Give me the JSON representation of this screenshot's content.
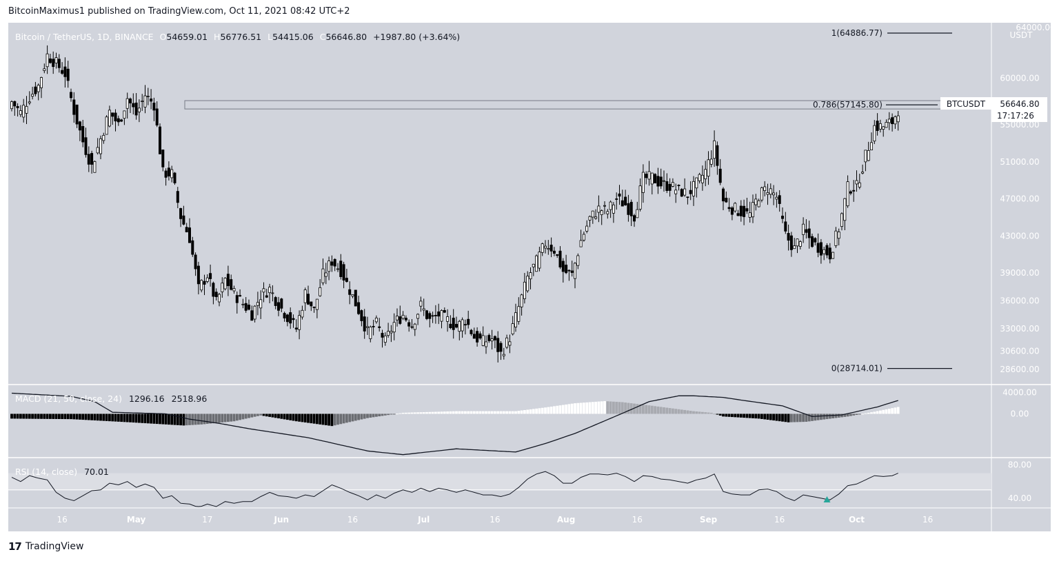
{
  "header": {
    "published": "BitcoinMaximus1 published on TradingView.com, Oct 11, 2021 08:42 UTC+2"
  },
  "legend": {
    "symbol": "Bitcoin / TetherUS, 1D, BINANCE",
    "o_key": "O",
    "o_val": "54659.01",
    "h_key": "H",
    "h_val": "56776.51",
    "l_key": "L",
    "l_val": "54415.06",
    "c_key": "C",
    "c_val": "56646.80",
    "change": "+1987.80 (+3.64%)"
  },
  "price_badge": {
    "symbol": "BTCUSDT",
    "price": "56646.80",
    "countdown": "17:17:26"
  },
  "currency_label": "USDT",
  "top_tick_partial": "64000.00",
  "logo": {
    "mark": "17",
    "text": "TradingView"
  },
  "colors": {
    "bg": "#d1d4dc",
    "up": "#ffffff",
    "down": "#000000",
    "rsi_signal": "#26a69a"
  },
  "chart_data": {
    "type": "candlestick",
    "price_axis": {
      "ticks": [
        "60000.00",
        "55000.00",
        "51000.00",
        "47000.00",
        "43000.00",
        "39000.00",
        "36000.00",
        "33000.00",
        "30600.00",
        "28600.00"
      ],
      "range": [
        27200,
        66000
      ]
    },
    "x_ticks": [
      "16",
      "May",
      "17",
      "Jun",
      "16",
      "Jul",
      "16",
      "Aug",
      "16",
      "Sep",
      "16",
      "Oct",
      "16"
    ],
    "fib_levels": [
      {
        "label": "1(64886.77)",
        "value": 64886.77
      },
      {
        "label": "0.786(57145.80)",
        "value": 57145.8
      },
      {
        "label": "0(28714.01)",
        "value": 28714.01
      }
    ],
    "resistance_zone": [
      56700,
      57600
    ],
    "close_path": [
      [
        0,
        57500
      ],
      [
        3,
        56300
      ],
      [
        6,
        58000
      ],
      [
        9,
        59200
      ],
      [
        12,
        62500
      ],
      [
        15,
        61600
      ],
      [
        18,
        60500
      ],
      [
        21,
        56500
      ],
      [
        24,
        53200
      ],
      [
        27,
        50500
      ],
      [
        30,
        53500
      ],
      [
        33,
        56400
      ],
      [
        36,
        55000
      ],
      [
        39,
        57900
      ],
      [
        42,
        56100
      ],
      [
        45,
        58200
      ],
      [
        48,
        57200
      ],
      [
        51,
        49800
      ],
      [
        54,
        49700
      ],
      [
        57,
        45100
      ],
      [
        60,
        42800
      ],
      [
        63,
        37300
      ],
      [
        66,
        38800
      ],
      [
        69,
        35800
      ],
      [
        72,
        38300
      ],
      [
        75,
        36800
      ],
      [
        78,
        35700
      ],
      [
        81,
        34600
      ],
      [
        84,
        36600
      ],
      [
        87,
        37300
      ],
      [
        90,
        35600
      ],
      [
        93,
        34300
      ],
      [
        96,
        33000
      ],
      [
        99,
        36800
      ],
      [
        102,
        35000
      ],
      [
        105,
        38800
      ],
      [
        108,
        40300
      ],
      [
        111,
        39300
      ],
      [
        114,
        37200
      ],
      [
        117,
        35000
      ],
      [
        120,
        32600
      ],
      [
        123,
        33500
      ],
      [
        126,
        31600
      ],
      [
        129,
        33600
      ],
      [
        132,
        34500
      ],
      [
        135,
        33400
      ],
      [
        138,
        35500
      ],
      [
        141,
        33900
      ],
      [
        144,
        34500
      ],
      [
        147,
        33900
      ],
      [
        150,
        33200
      ],
      [
        153,
        34000
      ],
      [
        156,
        32100
      ],
      [
        159,
        31600
      ],
      [
        162,
        31900
      ],
      [
        165,
        30300
      ],
      [
        168,
        32100
      ],
      [
        171,
        35300
      ],
      [
        174,
        38500
      ],
      [
        177,
        40200
      ],
      [
        180,
        42200
      ],
      [
        183,
        41500
      ],
      [
        186,
        39200
      ],
      [
        189,
        38800
      ],
      [
        192,
        42500
      ],
      [
        195,
        44900
      ],
      [
        198,
        45900
      ],
      [
        201,
        45700
      ],
      [
        204,
        47000
      ],
      [
        207,
        46400
      ],
      [
        210,
        45200
      ],
      [
        213,
        49200
      ],
      [
        216,
        49300
      ],
      [
        219,
        48600
      ],
      [
        222,
        48400
      ],
      [
        225,
        47900
      ],
      [
        228,
        47500
      ],
      [
        231,
        48600
      ],
      [
        234,
        50000
      ],
      [
        237,
        52700
      ],
      [
        240,
        46800
      ],
      [
        243,
        46000
      ],
      [
        246,
        45600
      ],
      [
        249,
        45300
      ],
      [
        252,
        47400
      ],
      [
        255,
        48200
      ],
      [
        258,
        47200
      ],
      [
        261,
        43100
      ],
      [
        264,
        41600
      ],
      [
        267,
        43600
      ],
      [
        270,
        42300
      ],
      [
        273,
        41600
      ],
      [
        276,
        41000
      ],
      [
        279,
        43800
      ],
      [
        282,
        48200
      ],
      [
        285,
        48300
      ],
      [
        288,
        51600
      ],
      [
        291,
        54800
      ],
      [
        294,
        54800
      ],
      [
        297,
        55300
      ],
      [
        299,
        56646.8
      ]
    ],
    "macd": {
      "label": "MACD (21, 50, close, 24)",
      "value1": "1296.16",
      "value2": "2518.96",
      "axis_ticks": [
        "4000.00",
        "0.00"
      ],
      "range": [
        -8000,
        5000
      ],
      "histogram_path": [
        [
          0,
          -900
        ],
        [
          20,
          -1000
        ],
        [
          40,
          -1600
        ],
        [
          58,
          -2200
        ],
        [
          64,
          -2000
        ],
        [
          75,
          -1400
        ],
        [
          84,
          -300
        ],
        [
          96,
          -1400
        ],
        [
          108,
          -2300
        ],
        [
          120,
          -800
        ],
        [
          132,
          200
        ],
        [
          150,
          500
        ],
        [
          170,
          500
        ],
        [
          180,
          1200
        ],
        [
          190,
          2000
        ],
        [
          200,
          2400
        ],
        [
          206,
          2200
        ],
        [
          215,
          1600
        ],
        [
          230,
          500
        ],
        [
          236,
          200
        ],
        [
          240,
          -500
        ],
        [
          252,
          -900
        ],
        [
          262,
          -1600
        ],
        [
          268,
          -1500
        ],
        [
          272,
          -1200
        ],
        [
          282,
          -500
        ],
        [
          291,
          400
        ],
        [
          299,
          1300
        ]
      ],
      "line_path": [
        [
          0,
          3900
        ],
        [
          20,
          3300
        ],
        [
          28,
          2300
        ],
        [
          34,
          300
        ],
        [
          40,
          200
        ],
        [
          52,
          0
        ],
        [
          60,
          -1000
        ],
        [
          70,
          -1800
        ],
        [
          80,
          -2800
        ],
        [
          100,
          -4500
        ],
        [
          120,
          -7000
        ],
        [
          132,
          -7700
        ],
        [
          150,
          -6600
        ],
        [
          170,
          -7200
        ],
        [
          180,
          -5600
        ],
        [
          190,
          -3700
        ],
        [
          198,
          -1800
        ],
        [
          206,
          100
        ],
        [
          215,
          2300
        ],
        [
          225,
          3400
        ],
        [
          230,
          3400
        ],
        [
          240,
          3100
        ],
        [
          246,
          2600
        ],
        [
          260,
          1500
        ],
        [
          270,
          -500
        ],
        [
          280,
          -200
        ],
        [
          292,
          1300
        ],
        [
          299,
          2518.96
        ]
      ]
    },
    "rsi": {
      "label": "RSI (14, close)",
      "value": "70.01",
      "axis_ticks": [
        "80.00",
        "40.00"
      ],
      "range": [
        30,
        87
      ],
      "bands": [
        50,
        70
      ],
      "path": [
        [
          0,
          65
        ],
        [
          3,
          60
        ],
        [
          6,
          67
        ],
        [
          9,
          64
        ],
        [
          12,
          62
        ],
        [
          15,
          47
        ],
        [
          18,
          40
        ],
        [
          21,
          37
        ],
        [
          24,
          43
        ],
        [
          27,
          49
        ],
        [
          30,
          50
        ],
        [
          33,
          58
        ],
        [
          36,
          56
        ],
        [
          39,
          60
        ],
        [
          42,
          53
        ],
        [
          45,
          57
        ],
        [
          48,
          53
        ],
        [
          51,
          40
        ],
        [
          54,
          43
        ],
        [
          57,
          34
        ],
        [
          60,
          33
        ],
        [
          63,
          29
        ],
        [
          66,
          33
        ],
        [
          69,
          30
        ],
        [
          72,
          36
        ],
        [
          75,
          34
        ],
        [
          78,
          36
        ],
        [
          81,
          36
        ],
        [
          84,
          42
        ],
        [
          87,
          47
        ],
        [
          90,
          43
        ],
        [
          93,
          42
        ],
        [
          96,
          40
        ],
        [
          99,
          44
        ],
        [
          102,
          42
        ],
        [
          105,
          49
        ],
        [
          108,
          56
        ],
        [
          111,
          52
        ],
        [
          114,
          47
        ],
        [
          117,
          43
        ],
        [
          120,
          38
        ],
        [
          123,
          44
        ],
        [
          126,
          40
        ],
        [
          129,
          46
        ],
        [
          132,
          50
        ],
        [
          135,
          47
        ],
        [
          138,
          52
        ],
        [
          141,
          48
        ],
        [
          144,
          52
        ],
        [
          147,
          50
        ],
        [
          150,
          47
        ],
        [
          153,
          50
        ],
        [
          156,
          47
        ],
        [
          159,
          44
        ],
        [
          162,
          44
        ],
        [
          165,
          42
        ],
        [
          168,
          45
        ],
        [
          171,
          53
        ],
        [
          174,
          63
        ],
        [
          177,
          69
        ],
        [
          180,
          72
        ],
        [
          183,
          67
        ],
        [
          186,
          58
        ],
        [
          189,
          58
        ],
        [
          192,
          65
        ],
        [
          195,
          69
        ],
        [
          198,
          69
        ],
        [
          201,
          68
        ],
        [
          204,
          70
        ],
        [
          207,
          66
        ],
        [
          210,
          60
        ],
        [
          213,
          67
        ],
        [
          216,
          66
        ],
        [
          219,
          63
        ],
        [
          222,
          62
        ],
        [
          225,
          60
        ],
        [
          228,
          58
        ],
        [
          231,
          62
        ],
        [
          234,
          64
        ],
        [
          237,
          69
        ],
        [
          240,
          48
        ],
        [
          243,
          45
        ],
        [
          246,
          44
        ],
        [
          249,
          44
        ],
        [
          252,
          50
        ],
        [
          255,
          51
        ],
        [
          258,
          48
        ],
        [
          261,
          41
        ],
        [
          264,
          37
        ],
        [
          267,
          44
        ],
        [
          270,
          42
        ],
        [
          273,
          40
        ],
        [
          276,
          38
        ],
        [
          279,
          45
        ],
        [
          282,
          55
        ],
        [
          285,
          57
        ],
        [
          288,
          62
        ],
        [
          291,
          67
        ],
        [
          294,
          66
        ],
        [
          297,
          67
        ],
        [
          299,
          70
        ]
      ],
      "signal_index": 275
    }
  }
}
